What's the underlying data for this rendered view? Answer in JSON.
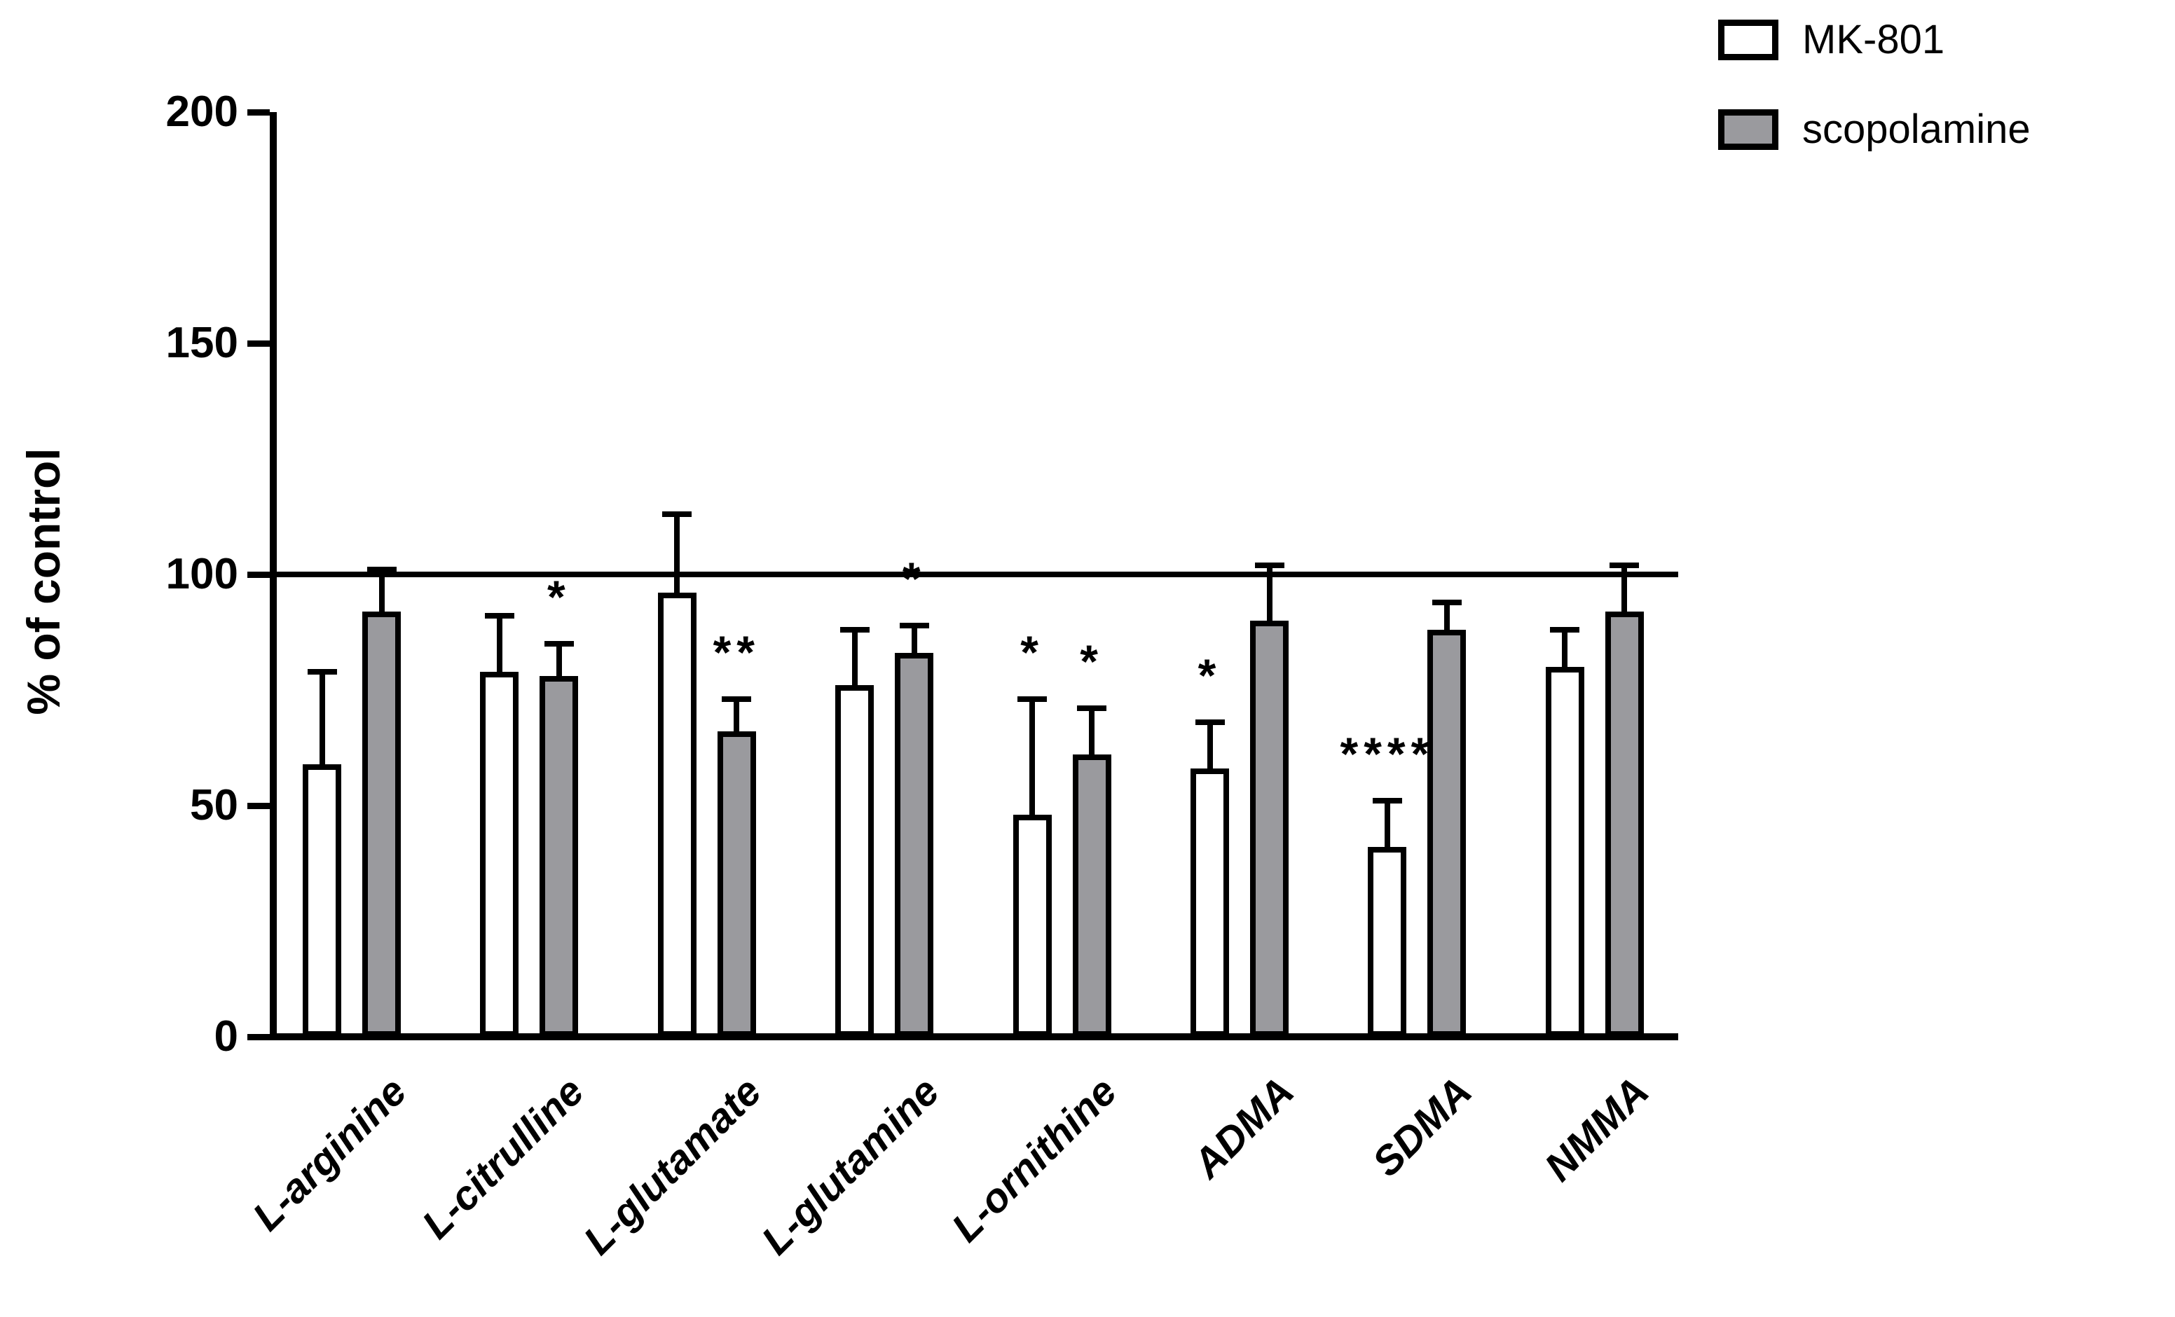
{
  "figure": {
    "y_axis_title": "% of control",
    "reference_line_value": 100,
    "background_color": "#ffffff",
    "stroke_color": "#000000"
  },
  "chart_data": {
    "type": "bar",
    "title": "",
    "xlabel": "",
    "ylabel": "% of control",
    "ylim": [
      0,
      200
    ],
    "yticks": [
      0,
      50,
      100,
      150,
      200
    ],
    "ytick_labels": [
      "0",
      "50",
      "100",
      "150",
      "200"
    ],
    "grid": false,
    "reference_line": 100,
    "legend_position": "top-right",
    "categories": [
      "L-arginine",
      "L-citrulline",
      "L-glutamate",
      "L-glutamine",
      "L-ornithine",
      "ADMA",
      "SDMA",
      "NMMA"
    ],
    "series": [
      {
        "name": "MK-801",
        "fill": "#ffffff",
        "values": [
          59,
          79,
          96,
          76,
          48,
          58,
          41,
          80
        ],
        "errors_plus": [
          20,
          12,
          17,
          12,
          25,
          10,
          10,
          8
        ],
        "sig": [
          "",
          "",
          "",
          "",
          "*",
          "*",
          "****",
          ""
        ]
      },
      {
        "name": "scopolamine",
        "fill": "#9a9a9e",
        "values": [
          92,
          78,
          66,
          83,
          61,
          90,
          88,
          92
        ],
        "errors_plus": [
          9,
          7,
          7,
          6,
          10,
          12,
          6,
          10
        ],
        "sig": [
          "",
          "*",
          "**",
          "*",
          "*",
          "",
          "",
          ""
        ]
      }
    ]
  }
}
